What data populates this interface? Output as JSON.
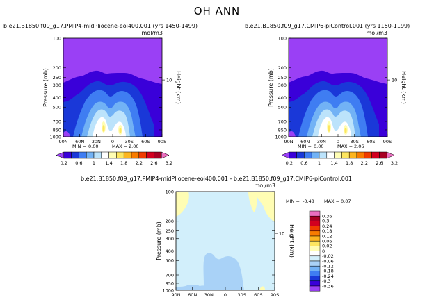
{
  "figure_title": "OH ANN",
  "chart_data": [
    {
      "type": "heatmap",
      "title": "b.e21.B1850.f09_g17.PMIP4-midPliocene-eoi400.001 (yrs 1450-1499)",
      "units": "mol/m3",
      "xlabel": "",
      "ylabel": "Pressure (mb)",
      "right_label": "Height (km)",
      "x_ticks": [
        "90N",
        "60N",
        "30N",
        "0",
        "30S",
        "60S",
        "90S"
      ],
      "y_ticks": [
        "100",
        "200",
        "250",
        "300",
        "400",
        "500",
        "700",
        "850",
        "1000"
      ],
      "right_ticks": [
        "10"
      ],
      "min_label": "MIN =",
      "min": "0.00",
      "max_label": "MAX =",
      "max": "2.00",
      "colorbar_ticks": [
        "0.2",
        "0.6",
        "1",
        "1.4",
        "1.8",
        "2.2",
        "2.6",
        "3.2"
      ],
      "colorbar_colors": [
        "#9a40f5",
        "#3a00d9",
        "#1a38d8",
        "#3f7df2",
        "#72b2f5",
        "#bce3fb",
        "#ffffff",
        "#fffdb4",
        "#fde660",
        "#fcb51f",
        "#f87c00",
        "#f03c00",
        "#d2001f",
        "#a80023",
        "#ea6fbf"
      ]
    },
    {
      "type": "heatmap",
      "title": "b.e21.B1850.f09_g17.CMIP6-piControl.001 (yrs 1150-1199)",
      "units": "mol/m3",
      "xlabel": "",
      "ylabel": "Pressure (mb)",
      "right_label": "Height (km)",
      "x_ticks": [
        "90N",
        "60N",
        "30N",
        "0",
        "30S",
        "60S",
        "90S"
      ],
      "y_ticks": [
        "100",
        "200",
        "250",
        "300",
        "400",
        "500",
        "700",
        "850",
        "1000"
      ],
      "right_ticks": [
        "10"
      ],
      "min_label": "MIN =",
      "min": "0.00",
      "max_label": "MAX =",
      "max": "2.06",
      "colorbar_ticks": [
        "0.2",
        "0.6",
        "1",
        "1.4",
        "1.8",
        "2.2",
        "2.6",
        "3.2"
      ],
      "colorbar_colors": [
        "#9a40f5",
        "#3a00d9",
        "#1a38d8",
        "#3f7df2",
        "#72b2f5",
        "#bce3fb",
        "#ffffff",
        "#fffdb4",
        "#fde660",
        "#fcb51f",
        "#f87c00",
        "#f03c00",
        "#d2001f",
        "#a80023",
        "#ea6fbf"
      ]
    },
    {
      "type": "heatmap",
      "title": "b.e21.B1850.f09_g17.PMIP4-midPliocene-eoi400.001 - b.e21.B1850.f09_g17.CMIP6-piControl.001",
      "units": "mol/m3",
      "xlabel": "",
      "ylabel": "Pressure (mb)",
      "right_label": "Height (km)",
      "x_ticks": [
        "90N",
        "60N",
        "30N",
        "0",
        "30S",
        "60S",
        "90S"
      ],
      "y_ticks": [
        "100",
        "200",
        "250",
        "300",
        "400",
        "500",
        "700",
        "850",
        "1000"
      ],
      "right_ticks": [
        "10"
      ],
      "min_label": "MIN =",
      "min": "-0.48",
      "max_label": "MAX =",
      "max": "0.07",
      "colorbar_ticks": [
        "0.36",
        "0.3",
        "0.24",
        "0.18",
        "0.12",
        "0.06",
        "0.02",
        "0",
        "-0.02",
        "-0.06",
        "-0.12",
        "-0.18",
        "-0.24",
        "-0.3",
        "-0.36"
      ],
      "colorbar_colors": [
        "#ea6fbf",
        "#a80023",
        "#d2001f",
        "#f03c00",
        "#f87c00",
        "#fcb51f",
        "#fde660",
        "#fffdb4",
        "#ffffff",
        "#d2effb",
        "#a9d2f7",
        "#72b2f5",
        "#3f7df2",
        "#1a38d8",
        "#3a00d9",
        "#9a40f5"
      ]
    }
  ]
}
